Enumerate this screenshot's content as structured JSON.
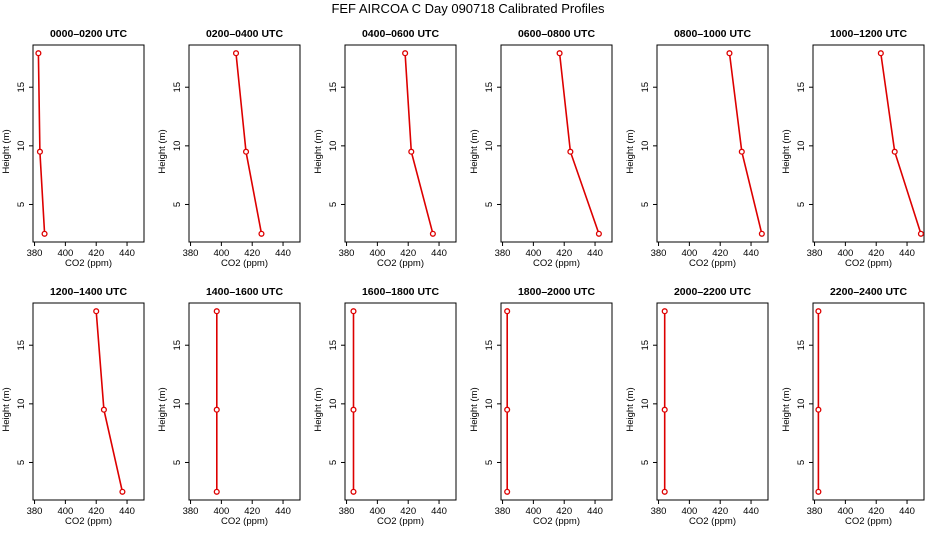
{
  "chart_data": {
    "type": "line",
    "title": "FEF AIRCOA C  Day 090718  Calibrated Profiles",
    "xlabel": "CO2 (ppm)",
    "ylabel": "Height (m)",
    "xlim": [
      379,
      451
    ],
    "ylim": [
      1.8,
      18.6
    ],
    "xticks": [
      "380",
      "400",
      "420",
      "440"
    ],
    "yticks": [
      "5",
      "10",
      "15"
    ],
    "series_color": "#dd0000",
    "panels": [
      {
        "title": "0000–0200 UTC",
        "points": [
          {
            "co2": 382.5,
            "height": 17.9
          },
          {
            "co2": 383.5,
            "height": 9.5
          },
          {
            "co2": 386.5,
            "height": 2.5
          }
        ]
      },
      {
        "title": "0200–0400 UTC",
        "points": [
          {
            "co2": 409.5,
            "height": 17.9
          },
          {
            "co2": 416.0,
            "height": 9.5
          },
          {
            "co2": 426.0,
            "height": 2.5
          }
        ]
      },
      {
        "title": "0400–0600 UTC",
        "points": [
          {
            "co2": 418.0,
            "height": 17.9
          },
          {
            "co2": 422.0,
            "height": 9.5
          },
          {
            "co2": 436.0,
            "height": 2.5
          }
        ]
      },
      {
        "title": "0600–0800 UTC",
        "points": [
          {
            "co2": 417.0,
            "height": 17.9
          },
          {
            "co2": 424.0,
            "height": 9.5
          },
          {
            "co2": 442.5,
            "height": 2.5
          }
        ]
      },
      {
        "title": "0800–1000 UTC",
        "points": [
          {
            "co2": 426.0,
            "height": 17.9
          },
          {
            "co2": 434.0,
            "height": 9.5
          },
          {
            "co2": 447.0,
            "height": 2.5
          }
        ]
      },
      {
        "title": "1000–1200 UTC",
        "points": [
          {
            "co2": 423.0,
            "height": 17.9
          },
          {
            "co2": 432.0,
            "height": 9.5
          },
          {
            "co2": 449.0,
            "height": 2.5
          }
        ]
      },
      {
        "title": "1200–1400 UTC",
        "points": [
          {
            "co2": 420.0,
            "height": 17.9
          },
          {
            "co2": 425.0,
            "height": 9.5
          },
          {
            "co2": 437.0,
            "height": 2.5
          }
        ]
      },
      {
        "title": "1400–1600 UTC",
        "points": [
          {
            "co2": 397.0,
            "height": 17.9
          },
          {
            "co2": 397.0,
            "height": 9.5
          },
          {
            "co2": 397.0,
            "height": 2.5
          }
        ]
      },
      {
        "title": "1600–1800 UTC",
        "points": [
          {
            "co2": 384.5,
            "height": 17.9
          },
          {
            "co2": 384.5,
            "height": 9.5
          },
          {
            "co2": 384.5,
            "height": 2.5
          }
        ]
      },
      {
        "title": "1800–2000 UTC",
        "points": [
          {
            "co2": 383.0,
            "height": 17.9
          },
          {
            "co2": 383.0,
            "height": 9.5
          },
          {
            "co2": 383.0,
            "height": 2.5
          }
        ]
      },
      {
        "title": "2000–2200 UTC",
        "points": [
          {
            "co2": 384.0,
            "height": 17.9
          },
          {
            "co2": 384.0,
            "height": 9.5
          },
          {
            "co2": 384.0,
            "height": 2.5
          }
        ]
      },
      {
        "title": "2200–2400 UTC",
        "points": [
          {
            "co2": 382.5,
            "height": 17.9
          },
          {
            "co2": 382.5,
            "height": 9.5
          },
          {
            "co2": 382.5,
            "height": 2.5
          }
        ]
      }
    ]
  }
}
